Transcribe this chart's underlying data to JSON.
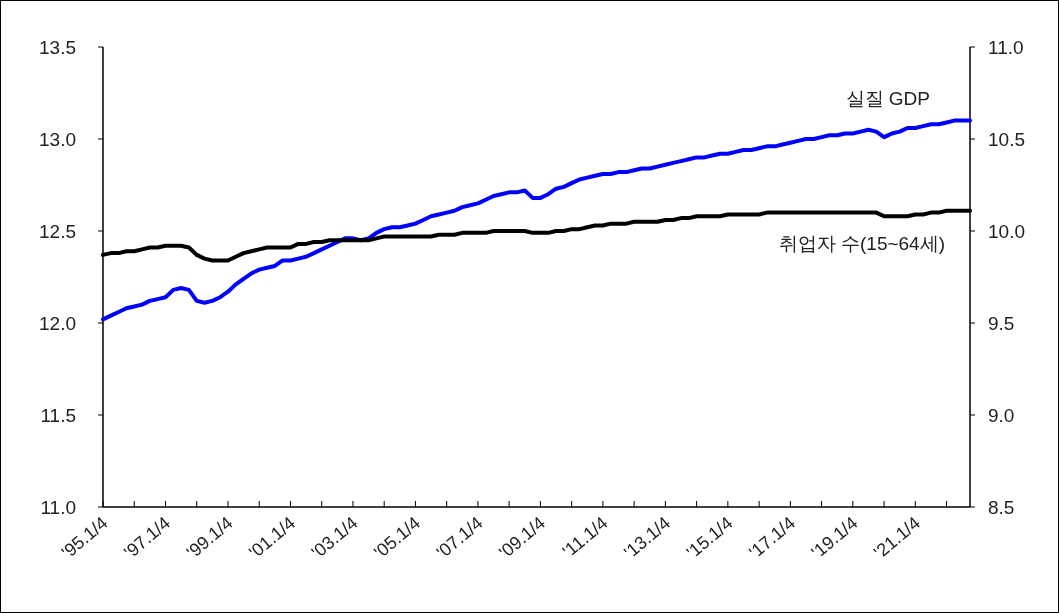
{
  "chart_data": {
    "type": "line",
    "categories": [
      "'95.1/4",
      null,
      null,
      null,
      null,
      null,
      null,
      null,
      "'97.1/4",
      null,
      null,
      null,
      null,
      null,
      null,
      null,
      "'99.1/4",
      null,
      null,
      null,
      null,
      null,
      null,
      null,
      "'01.1/4",
      null,
      null,
      null,
      null,
      null,
      null,
      null,
      "'03.1/4",
      null,
      null,
      null,
      null,
      null,
      null,
      null,
      "'05.1/4",
      null,
      null,
      null,
      null,
      null,
      null,
      null,
      "'07.1/4",
      null,
      null,
      null,
      null,
      null,
      null,
      null,
      "'09.1/4",
      null,
      null,
      null,
      null,
      null,
      null,
      null,
      "'11.1/4",
      null,
      null,
      null,
      null,
      null,
      null,
      null,
      "'13.1/4",
      null,
      null,
      null,
      null,
      null,
      null,
      null,
      "'15.1/4",
      null,
      null,
      null,
      null,
      null,
      null,
      null,
      "'17.1/4",
      null,
      null,
      null,
      null,
      null,
      null,
      null,
      "'19.1/4",
      null,
      null,
      null,
      null,
      null,
      null,
      null,
      "'21.1/4",
      null,
      null,
      null,
      null,
      null,
      null,
      null
    ],
    "series": [
      {
        "name": "실질 GDP",
        "color": "#0000ff",
        "values": [
          12.02,
          12.04,
          12.06,
          12.08,
          12.09,
          12.1,
          12.12,
          12.13,
          12.14,
          12.18,
          12.19,
          12.18,
          12.12,
          12.11,
          12.12,
          12.14,
          12.17,
          12.21,
          12.24,
          12.27,
          12.29,
          12.3,
          12.31,
          12.34,
          12.34,
          12.35,
          12.36,
          12.38,
          12.4,
          12.42,
          12.44,
          12.46,
          12.46,
          12.45,
          12.46,
          12.49,
          12.51,
          12.52,
          12.52,
          12.53,
          12.54,
          12.56,
          12.58,
          12.59,
          12.6,
          12.61,
          12.63,
          12.64,
          12.65,
          12.67,
          12.69,
          12.7,
          12.71,
          12.71,
          12.72,
          12.68,
          12.68,
          12.7,
          12.73,
          12.74,
          12.76,
          12.78,
          12.79,
          12.8,
          12.81,
          12.81,
          12.82,
          12.82,
          12.83,
          12.84,
          12.84,
          12.85,
          12.86,
          12.87,
          12.88,
          12.89,
          12.9,
          12.9,
          12.91,
          12.92,
          12.92,
          12.93,
          12.94,
          12.94,
          12.95,
          12.96,
          12.96,
          12.97,
          12.98,
          12.99,
          13.0,
          13.0,
          13.01,
          13.02,
          13.02,
          13.03,
          13.03,
          13.04,
          13.05,
          13.04,
          13.01,
          13.03,
          13.04,
          13.06,
          13.06,
          13.07,
          13.08,
          13.08,
          13.09,
          13.1,
          13.1,
          13.1
        ]
      },
      {
        "name": "취업자 수(15~64세)",
        "color": "#000000",
        "axis": "y2",
        "values": [
          9.87,
          9.88,
          9.88,
          9.89,
          9.89,
          9.9,
          9.91,
          9.91,
          9.92,
          9.92,
          9.92,
          9.91,
          9.87,
          9.85,
          9.84,
          9.84,
          9.84,
          9.86,
          9.88,
          9.89,
          9.9,
          9.91,
          9.91,
          9.91,
          9.91,
          9.93,
          9.93,
          9.94,
          9.94,
          9.95,
          9.95,
          9.95,
          9.95,
          9.95,
          9.95,
          9.96,
          9.97,
          9.97,
          9.97,
          9.97,
          9.97,
          9.97,
          9.97,
          9.98,
          9.98,
          9.98,
          9.99,
          9.99,
          9.99,
          9.99,
          10.0,
          10.0,
          10.0,
          10.0,
          10.0,
          9.99,
          9.99,
          9.99,
          10.0,
          10.0,
          10.01,
          10.01,
          10.02,
          10.03,
          10.03,
          10.04,
          10.04,
          10.04,
          10.05,
          10.05,
          10.05,
          10.05,
          10.06,
          10.06,
          10.07,
          10.07,
          10.08,
          10.08,
          10.08,
          10.08,
          10.09,
          10.09,
          10.09,
          10.09,
          10.09,
          10.1,
          10.1,
          10.1,
          10.1,
          10.1,
          10.1,
          10.1,
          10.1,
          10.1,
          10.1,
          10.1,
          10.1,
          10.1,
          10.1,
          10.1,
          10.08,
          10.08,
          10.08,
          10.08,
          10.09,
          10.09,
          10.1,
          10.1,
          10.11,
          10.11,
          10.11,
          10.11
        ]
      }
    ],
    "ylim": [
      11.0,
      13.5
    ],
    "yticks": [
      {
        "value": 11.0,
        "label": "11.0"
      },
      {
        "value": 11.5,
        "label": "11.5"
      },
      {
        "value": 12.0,
        "label": "12.0"
      },
      {
        "value": 12.5,
        "label": "12.5"
      },
      {
        "value": 13.0,
        "label": "13.0"
      },
      {
        "value": 13.5,
        "label": "13.5"
      }
    ],
    "y2lim": [
      8.5,
      11.0
    ],
    "y2ticks": [
      {
        "value": 8.5,
        "label": "8.5"
      },
      {
        "value": 9.0,
        "label": "9.0"
      },
      {
        "value": 9.5,
        "label": "9.5"
      },
      {
        "value": 10.0,
        "label": "10.0"
      },
      {
        "value": 10.5,
        "label": "10.5"
      },
      {
        "value": 11.0,
        "label": "11.0"
      }
    ],
    "grid": false,
    "legend": false
  }
}
